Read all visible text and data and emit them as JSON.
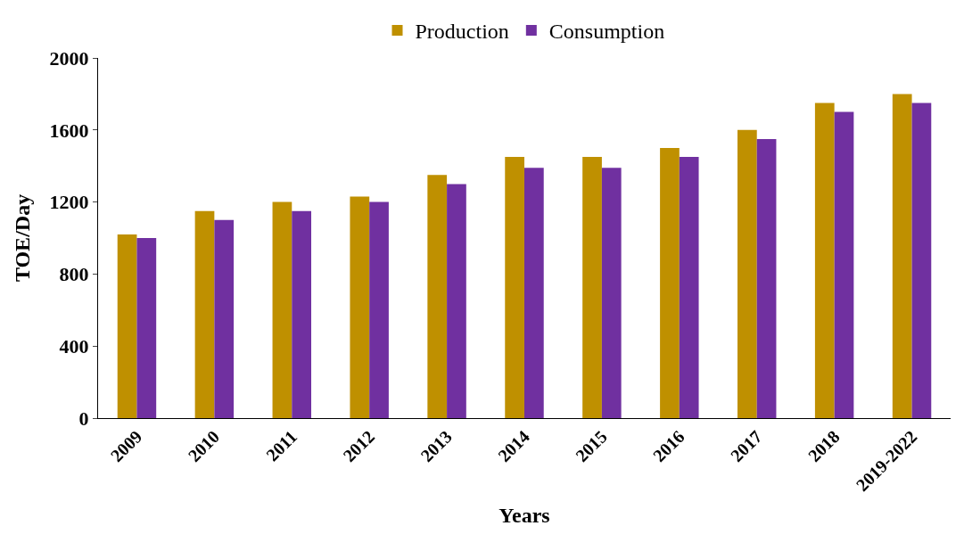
{
  "chart_data": {
    "type": "bar",
    "xlabel": "Years",
    "ylabel": "TOE/Day",
    "categories": [
      "2009",
      "2010",
      "2011",
      "2012",
      "2013",
      "2014",
      "2015",
      "2016",
      "2017",
      "2018",
      "2019-2022"
    ],
    "series": [
      {
        "name": "Production",
        "color": "#bf9000",
        "values": [
          1020,
          1150,
          1200,
          1230,
          1350,
          1450,
          1450,
          1500,
          1600,
          1750,
          1800
        ]
      },
      {
        "name": "Consumption",
        "color": "#7030a0",
        "values": [
          1000,
          1100,
          1150,
          1200,
          1300,
          1390,
          1390,
          1450,
          1550,
          1700,
          1750
        ]
      }
    ],
    "ylim": [
      0,
      2000
    ],
    "yticks": [
      0,
      400,
      800,
      1200,
      1600,
      2000
    ],
    "legend": "top"
  }
}
